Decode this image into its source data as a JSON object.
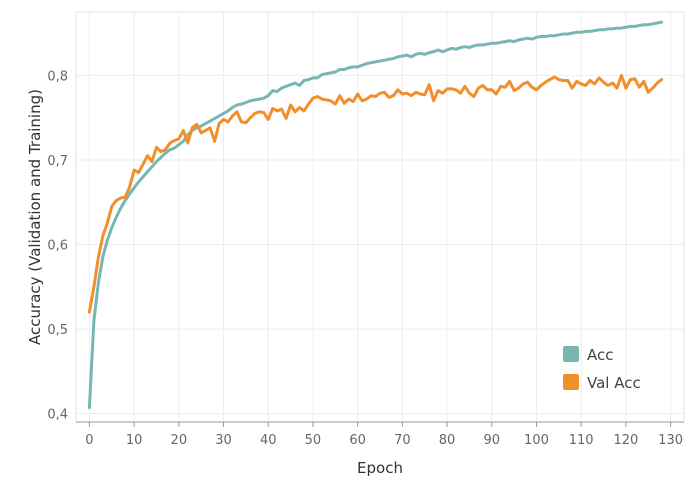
{
  "chart_data": {
    "type": "line",
    "title": "",
    "xlabel": "Epoch",
    "ylabel": "Accuracy (Validation and Training)",
    "xlim": [
      -3,
      133
    ],
    "ylim": [
      0.39,
      0.875
    ],
    "x_ticks": [
      0,
      10,
      20,
      30,
      40,
      50,
      60,
      70,
      80,
      90,
      100,
      110,
      120,
      130
    ],
    "x_tick_labels": [
      "0",
      "10",
      "20",
      "30",
      "40",
      "50",
      "60",
      "70",
      "80",
      "90",
      "100",
      "110",
      "120",
      "130"
    ],
    "y_ticks": [
      0.4,
      0.5,
      0.6,
      0.7,
      0.8
    ],
    "y_tick_labels": [
      "0,4",
      "0,5",
      "0,6",
      "0,7",
      "0,8"
    ],
    "grid": true,
    "legend_position": "bottom-right",
    "colors": {
      "Acc": "#76b7b2",
      "Val Acc": "#f28e2b"
    },
    "series": [
      {
        "name": "Acc",
        "x": [
          0,
          1,
          2,
          3,
          4,
          5,
          6,
          7,
          8,
          9,
          10,
          11,
          12,
          13,
          14,
          15,
          16,
          17,
          18,
          19,
          20,
          21,
          22,
          23,
          24,
          25,
          26,
          27,
          28,
          29,
          30,
          31,
          32,
          33,
          34,
          35,
          36,
          37,
          38,
          39,
          40,
          41,
          42,
          43,
          44,
          45,
          46,
          47,
          48,
          49,
          50,
          51,
          52,
          53,
          54,
          55,
          56,
          57,
          58,
          59,
          60,
          61,
          62,
          63,
          64,
          65,
          66,
          67,
          68,
          69,
          70,
          71,
          72,
          73,
          74,
          75,
          76,
          77,
          78,
          79,
          80,
          81,
          82,
          83,
          84,
          85,
          86,
          87,
          88,
          89,
          90,
          91,
          92,
          93,
          94,
          95,
          96,
          97,
          98,
          99,
          100,
          101,
          102,
          103,
          104,
          105,
          106,
          107,
          108,
          109,
          110,
          111,
          112,
          113,
          114,
          115,
          116,
          117,
          118,
          119,
          120,
          121,
          122,
          123,
          124,
          125,
          126,
          127,
          128
        ],
        "values": [
          0.407,
          0.51,
          0.555,
          0.585,
          0.605,
          0.62,
          0.632,
          0.643,
          0.652,
          0.66,
          0.667,
          0.674,
          0.68,
          0.686,
          0.692,
          0.698,
          0.703,
          0.708,
          0.712,
          0.714,
          0.718,
          0.722,
          0.73,
          0.735,
          0.738,
          0.74,
          0.743,
          0.746,
          0.749,
          0.752,
          0.755,
          0.758,
          0.762,
          0.765,
          0.766,
          0.768,
          0.77,
          0.771,
          0.772,
          0.773,
          0.776,
          0.782,
          0.781,
          0.785,
          0.787,
          0.789,
          0.791,
          0.788,
          0.794,
          0.795,
          0.797,
          0.797,
          0.801,
          0.802,
          0.803,
          0.804,
          0.807,
          0.807,
          0.809,
          0.81,
          0.81,
          0.812,
          0.814,
          0.815,
          0.816,
          0.817,
          0.818,
          0.819,
          0.82,
          0.822,
          0.823,
          0.824,
          0.822,
          0.825,
          0.826,
          0.825,
          0.827,
          0.828,
          0.83,
          0.828,
          0.83,
          0.832,
          0.831,
          0.833,
          0.834,
          0.833,
          0.835,
          0.836,
          0.836,
          0.837,
          0.838,
          0.838,
          0.839,
          0.84,
          0.841,
          0.84,
          0.842,
          0.843,
          0.844,
          0.843,
          0.845,
          0.846,
          0.846,
          0.847,
          0.847,
          0.848,
          0.849,
          0.849,
          0.85,
          0.851,
          0.851,
          0.852,
          0.852,
          0.853,
          0.854,
          0.854,
          0.855,
          0.855,
          0.856,
          0.856,
          0.857,
          0.858,
          0.858,
          0.859,
          0.86,
          0.86,
          0.861,
          0.862,
          0.863
        ]
      },
      {
        "name": "Val Acc",
        "x": [
          0,
          1,
          2,
          3,
          4,
          5,
          6,
          7,
          8,
          9,
          10,
          11,
          12,
          13,
          14,
          15,
          16,
          17,
          18,
          19,
          20,
          21,
          22,
          23,
          24,
          25,
          26,
          27,
          28,
          29,
          30,
          31,
          32,
          33,
          34,
          35,
          36,
          37,
          38,
          39,
          40,
          41,
          42,
          43,
          44,
          45,
          46,
          47,
          48,
          49,
          50,
          51,
          52,
          53,
          54,
          55,
          56,
          57,
          58,
          59,
          60,
          61,
          62,
          63,
          64,
          65,
          66,
          67,
          68,
          69,
          70,
          71,
          72,
          73,
          74,
          75,
          76,
          77,
          78,
          79,
          80,
          81,
          82,
          83,
          84,
          85,
          86,
          87,
          88,
          89,
          90,
          91,
          92,
          93,
          94,
          95,
          96,
          97,
          98,
          99,
          100,
          101,
          102,
          103,
          104,
          105,
          106,
          107,
          108,
          109,
          110,
          111,
          112,
          113,
          114,
          115,
          116,
          117,
          118,
          119,
          120,
          121,
          122,
          123,
          124,
          125,
          126,
          127,
          128
        ],
        "values": [
          0.52,
          0.55,
          0.585,
          0.61,
          0.625,
          0.645,
          0.652,
          0.655,
          0.656,
          0.668,
          0.688,
          0.685,
          0.695,
          0.705,
          0.698,
          0.715,
          0.71,
          0.712,
          0.72,
          0.723,
          0.725,
          0.735,
          0.72,
          0.738,
          0.742,
          0.732,
          0.735,
          0.738,
          0.722,
          0.743,
          0.748,
          0.745,
          0.752,
          0.757,
          0.745,
          0.744,
          0.75,
          0.755,
          0.757,
          0.756,
          0.748,
          0.761,
          0.758,
          0.76,
          0.749,
          0.765,
          0.757,
          0.762,
          0.758,
          0.766,
          0.773,
          0.775,
          0.772,
          0.771,
          0.77,
          0.766,
          0.776,
          0.767,
          0.772,
          0.769,
          0.778,
          0.77,
          0.772,
          0.776,
          0.775,
          0.779,
          0.78,
          0.774,
          0.776,
          0.783,
          0.778,
          0.779,
          0.776,
          0.78,
          0.778,
          0.777,
          0.789,
          0.77,
          0.782,
          0.779,
          0.784,
          0.784,
          0.783,
          0.779,
          0.787,
          0.779,
          0.775,
          0.785,
          0.788,
          0.783,
          0.783,
          0.778,
          0.787,
          0.786,
          0.793,
          0.782,
          0.785,
          0.79,
          0.792,
          0.786,
          0.783,
          0.788,
          0.792,
          0.795,
          0.798,
          0.795,
          0.794,
          0.794,
          0.785,
          0.793,
          0.79,
          0.788,
          0.794,
          0.79,
          0.797,
          0.792,
          0.788,
          0.791,
          0.785,
          0.8,
          0.785,
          0.795,
          0.796,
          0.786,
          0.793,
          0.78,
          0.785,
          0.791,
          0.795
        ]
      }
    ]
  }
}
